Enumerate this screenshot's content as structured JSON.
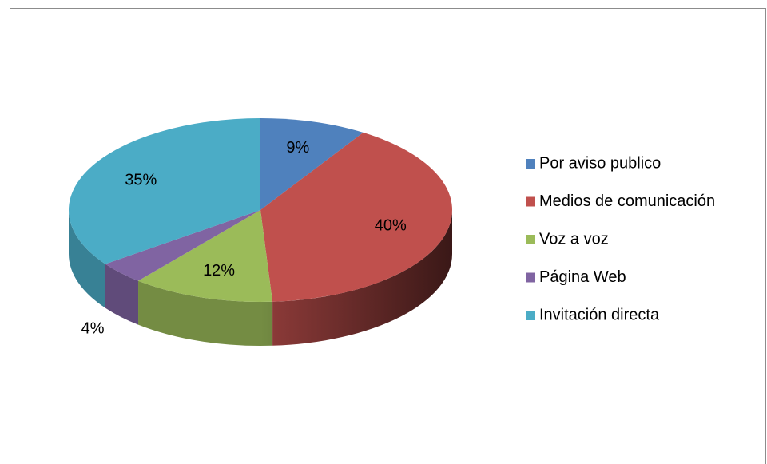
{
  "chart_data": {
    "type": "pie",
    "categories": [
      "Por aviso publico",
      "Medios de comunicación",
      "Voz a voz",
      "Página Web",
      "Invitación directa"
    ],
    "values": [
      9,
      40,
      12,
      4,
      35
    ],
    "value_labels": [
      "9%",
      "40%",
      "12%",
      "4%",
      "35%"
    ],
    "colors": [
      "#4f81bd",
      "#c0504d",
      "#9bbb59",
      "#8064a2",
      "#4bacc6"
    ],
    "legend": "right"
  }
}
